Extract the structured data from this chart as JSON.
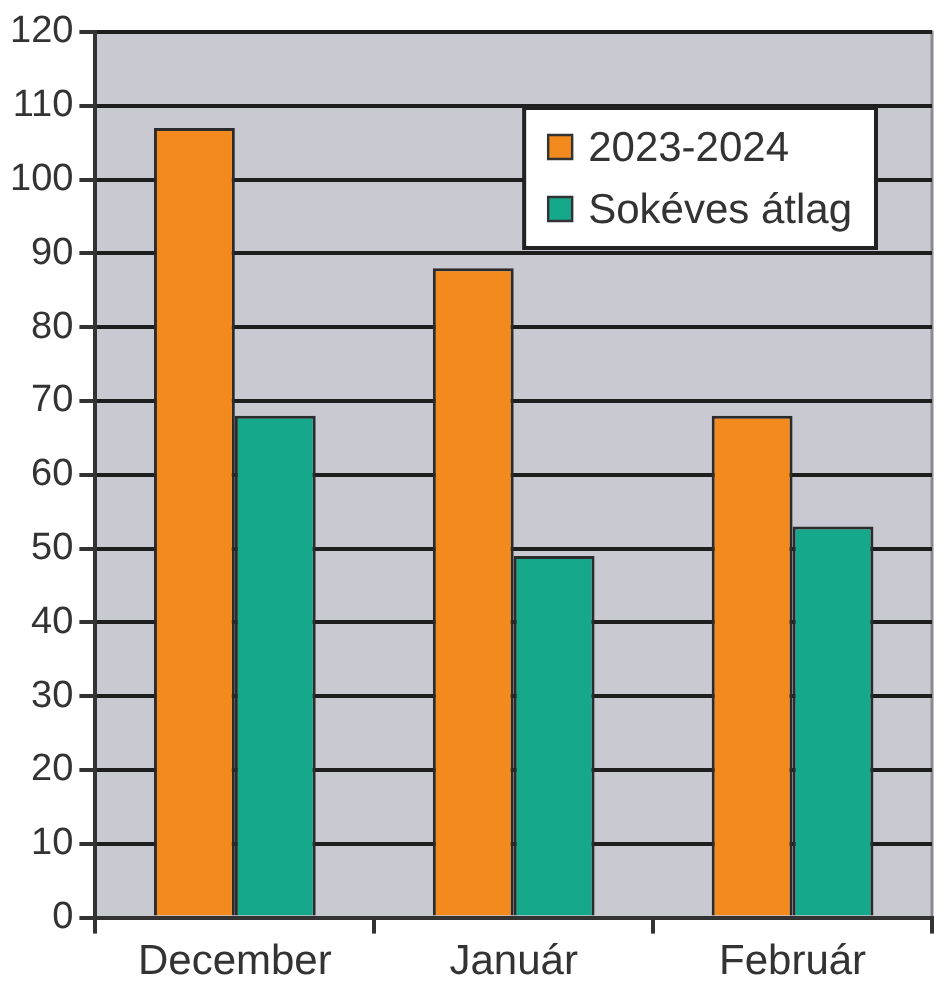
{
  "chart_data": {
    "type": "bar",
    "categories": [
      "December",
      "Január",
      "Február"
    ],
    "series": [
      {
        "name": "2023-2024",
        "color": "#f28a1e",
        "values": [
          107,
          88,
          68
        ]
      },
      {
        "name": "Sokéves átlag",
        "color": "#16a88a",
        "values": [
          68,
          49,
          53
        ]
      }
    ],
    "ylim": [
      0,
      120
    ],
    "yticks": [
      0,
      10,
      20,
      30,
      40,
      50,
      60,
      70,
      80,
      90,
      100,
      110,
      120
    ],
    "grid": "y",
    "legend": "top right"
  }
}
